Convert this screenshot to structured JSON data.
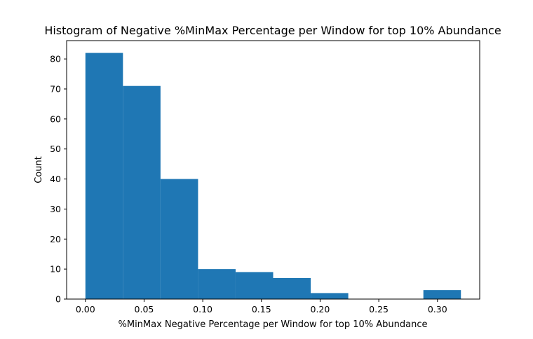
{
  "chart_data": {
    "type": "bar",
    "subtype": "histogram",
    "title": "Histogram of Negative %MinMax Percentage per Window for top 10% Abundance",
    "xlabel": "%MinMax Negative Percentage per Window for top 10% Abundance",
    "ylabel": "Count",
    "bin_edges": [
      0.0,
      0.032,
      0.064,
      0.096,
      0.128,
      0.16,
      0.192,
      0.224,
      0.256,
      0.288,
      0.32
    ],
    "values": [
      82,
      71,
      40,
      10,
      9,
      7,
      2,
      0,
      0,
      3
    ],
    "xlim": [
      -0.016,
      0.336
    ],
    "ylim": [
      0,
      86.1
    ],
    "x_ticks": [
      0.0,
      0.05,
      0.1,
      0.15,
      0.2,
      0.25,
      0.3
    ],
    "x_tick_labels": [
      "0.00",
      "0.05",
      "0.10",
      "0.15",
      "0.20",
      "0.25",
      "0.30"
    ],
    "y_ticks": [
      0,
      10,
      20,
      30,
      40,
      50,
      60,
      70,
      80
    ],
    "y_tick_labels": [
      "0",
      "10",
      "20",
      "30",
      "40",
      "50",
      "60",
      "70",
      "80"
    ],
    "bar_color": "#1f77b4",
    "grid": false,
    "legend": "none"
  }
}
